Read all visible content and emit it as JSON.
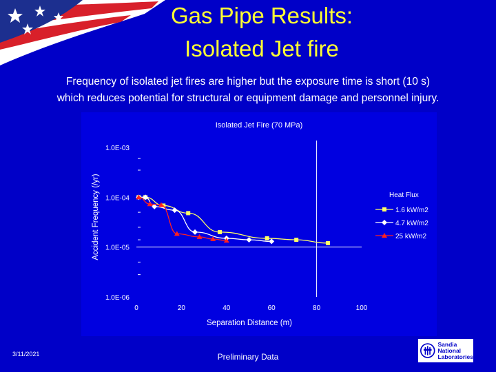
{
  "slide": {
    "title_line1": "Gas Pipe Results:",
    "title_line2": "Isolated Jet fire",
    "subtitle_line1": "Frequency of isolated jet fires are higher but the exposure time is short (10 s)",
    "subtitle_line2": "which reduces potential for structural or equipment damage and personnel injury.",
    "date": "3/11/2021",
    "footer_note": "Preliminary Data",
    "logo_lines": [
      "Sandia",
      "National",
      "Laboratories"
    ]
  },
  "colors": {
    "background": "#0000c8",
    "title": "#ffff33",
    "series_1": "#ffff66",
    "series_2": "#ffffff",
    "series_3": "#ff2020",
    "axis": "#ffffff"
  },
  "chart_data": {
    "type": "line",
    "title": "Isolated Jet Fire (70 MPa)",
    "xlabel": "Separation Distance (m)",
    "ylabel": "Accident Frequency (/yr)",
    "xlim": [
      0,
      100
    ],
    "x_ticks": [
      "0",
      "20",
      "40",
      "60",
      "80",
      "100"
    ],
    "ylim": [
      1e-06,
      0.001
    ],
    "y_scale": "log",
    "y_ticks": [
      "1.0E-03",
      "1.0E-04",
      "1.0E-05",
      "1.0E-06"
    ],
    "legend_title": "Heat Flux",
    "legend_position": "right",
    "grid": false,
    "series": [
      {
        "name": "1.6 kW/m2",
        "color": "#ffff66",
        "marker": "square",
        "x": [
          1,
          4,
          12,
          23,
          37,
          58,
          71,
          85
        ],
        "y": [
          0.0001,
          0.0001,
          6.8e-05,
          4.8e-05,
          2e-05,
          1.5e-05,
          1.4e-05,
          1.2e-05
        ]
      },
      {
        "name": "4.7 kW/m2",
        "color": "#ffffff",
        "marker": "diamond",
        "x": [
          1,
          4,
          8,
          17,
          26,
          40,
          50,
          60
        ],
        "y": [
          0.0001,
          0.0001,
          6.5e-05,
          5.5e-05,
          2e-05,
          1.5e-05,
          1.4e-05,
          1.3e-05
        ]
      },
      {
        "name": "25 kW/m2",
        "color": "#ff2020",
        "marker": "triangle",
        "x": [
          1,
          6,
          11,
          18,
          28,
          34,
          40
        ],
        "y": [
          0.0001,
          7.3e-05,
          7e-05,
          1.85e-05,
          1.6e-05,
          1.45e-05,
          1.35e-05
        ]
      }
    ]
  }
}
